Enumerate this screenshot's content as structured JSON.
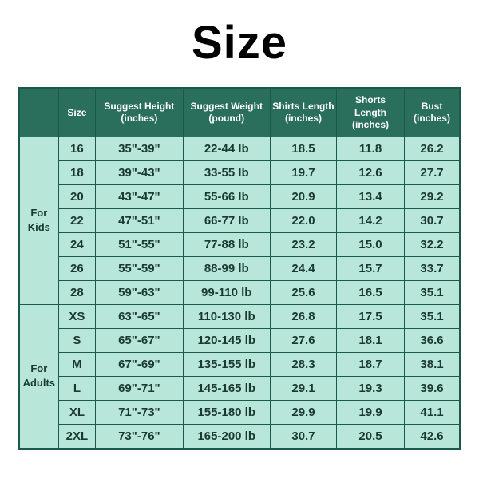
{
  "title": "Size",
  "headers": {
    "group": "",
    "size": "Size",
    "height": "Suggest Height (inches)",
    "weight": "Suggest Weight (pound)",
    "shirts": "Shirts Length (inches)",
    "shorts": "Shorts Length (inches)",
    "bust": "Bust (inches)"
  },
  "groups": [
    {
      "label": "For Kids",
      "rows": [
        {
          "size": "16",
          "height": "35\"-39\"",
          "weight": "22-44 lb",
          "shirts": "18.5",
          "shorts": "11.8",
          "bust": "26.2"
        },
        {
          "size": "18",
          "height": "39\"-43\"",
          "weight": "33-55 lb",
          "shirts": "19.7",
          "shorts": "12.6",
          "bust": "27.7"
        },
        {
          "size": "20",
          "height": "43\"-47\"",
          "weight": "55-66 lb",
          "shirts": "20.9",
          "shorts": "13.4",
          "bust": "29.2"
        },
        {
          "size": "22",
          "height": "47\"-51\"",
          "weight": "66-77 lb",
          "shirts": "22.0",
          "shorts": "14.2",
          "bust": "30.7"
        },
        {
          "size": "24",
          "height": "51\"-55\"",
          "weight": "77-88 lb",
          "shirts": "23.2",
          "shorts": "15.0",
          "bust": "32.2"
        },
        {
          "size": "26",
          "height": "55\"-59\"",
          "weight": "88-99 lb",
          "shirts": "24.4",
          "shorts": "15.7",
          "bust": "33.7"
        },
        {
          "size": "28",
          "height": "59\"-63\"",
          "weight": "99-110 lb",
          "shirts": "25.6",
          "shorts": "16.5",
          "bust": "35.1"
        }
      ]
    },
    {
      "label": "For Adults",
      "rows": [
        {
          "size": "XS",
          "height": "63\"-65\"",
          "weight": "110-130 lb",
          "shirts": "26.8",
          "shorts": "17.5",
          "bust": "35.1"
        },
        {
          "size": "S",
          "height": "65\"-67\"",
          "weight": "120-145 lb",
          "shirts": "27.6",
          "shorts": "18.1",
          "bust": "36.6"
        },
        {
          "size": "M",
          "height": "67\"-69\"",
          "weight": "135-155 lb",
          "shirts": "28.3",
          "shorts": "18.7",
          "bust": "38.1"
        },
        {
          "size": "L",
          "height": "69\"-71\"",
          "weight": "145-165 lb",
          "shirts": "29.1",
          "shorts": "19.3",
          "bust": "39.6"
        },
        {
          "size": "XL",
          "height": "71\"-73\"",
          "weight": "155-180 lb",
          "shirts": "29.9",
          "shorts": "19.9",
          "bust": "41.1"
        },
        {
          "size": "2XL",
          "height": "73\"-76\"",
          "weight": "165-200 lb",
          "shirts": "30.7",
          "shorts": "20.5",
          "bust": "42.6"
        }
      ]
    }
  ],
  "colors": {
    "header_bg": "#2a6e5c",
    "header_fg": "#ffffff",
    "cell_bg": "#b8e6d9",
    "cell_fg": "#1a3a30",
    "border": "#1a5a4a"
  }
}
